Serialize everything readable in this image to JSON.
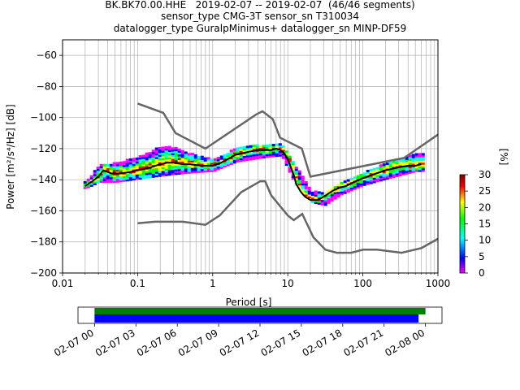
{
  "header": {
    "line1": "BK.BK70.00.HHE   2019-02-07 -- 2019-02-07  (46/46 segments)",
    "line2": "sensor_type CMG-3T sensor_sn T310034",
    "line3": "datalogger_type GuralpMinimus+ datalogger_sn MINP-DF59"
  },
  "chart_data": [
    {
      "type": "heatmap",
      "xlabel": "Period [s]",
      "ylabel": "Power [m²/s⁴/Hz] [dB]",
      "xscale": "log",
      "xlim": [
        0.01,
        1000
      ],
      "ylim": [
        -200,
        -50
      ],
      "x_ticks": [
        {
          "value": 0.01,
          "label": "0.01"
        },
        {
          "value": 0.1,
          "label": "0.1"
        },
        {
          "value": 1,
          "label": "1"
        },
        {
          "value": 10,
          "label": "10"
        },
        {
          "value": 100,
          "label": "100"
        },
        {
          "value": 1000,
          "label": "1000"
        }
      ],
      "y_ticks": [
        -60,
        -80,
        -100,
        -120,
        -140,
        -160,
        -180,
        -200
      ],
      "grid": true,
      "colorbar": {
        "label": "[%]",
        "ticks": [
          0,
          5,
          10,
          15,
          20,
          25,
          30
        ],
        "range": [
          0,
          30
        ]
      },
      "noise_model_high": {
        "x": [
          0.1,
          0.22,
          0.32,
          0.8,
          3.8,
          4.6,
          6.3,
          7.9,
          15.4,
          20,
          354,
          1000
        ],
        "y": [
          -91,
          -97,
          -110,
          -120,
          -98,
          -96,
          -101,
          -113,
          -120,
          -138,
          -126,
          -111
        ]
      },
      "noise_model_low": {
        "x": [
          0.1,
          0.17,
          0.4,
          0.8,
          1.24,
          2.4,
          4.3,
          5,
          6,
          10,
          12,
          15.6,
          21.9,
          31.6,
          45,
          70,
          101,
          154,
          328,
          600,
          1000
        ],
        "y": [
          -168,
          -167,
          -167,
          -169,
          -163,
          -148,
          -141,
          -141,
          -150,
          -163,
          -166,
          -162,
          -177,
          -185,
          -187,
          -187,
          -185,
          -185,
          -187,
          -184,
          -178
        ]
      },
      "mode_curve": {
        "x": [
          0.02,
          0.025,
          0.03,
          0.035,
          0.045,
          0.06,
          0.08,
          0.1,
          0.15,
          0.2,
          0.25,
          0.3,
          0.4,
          0.5,
          0.7,
          1,
          1.3,
          2,
          3,
          4,
          5,
          6,
          7,
          8,
          9,
          10,
          11,
          12,
          13,
          15,
          17,
          20,
          25,
          30,
          40,
          50,
          60,
          80,
          100,
          150,
          200,
          300,
          400,
          500,
          600
        ],
        "y": [
          -144,
          -141,
          -138,
          -134,
          -136,
          -136,
          -135,
          -134,
          -132,
          -130,
          -129,
          -129,
          -130,
          -130,
          -131,
          -131,
          -129,
          -124,
          -122,
          -121,
          -121,
          -121,
          -120,
          -121,
          -123,
          -127,
          -132,
          -137,
          -143,
          -148,
          -151,
          -153,
          -153,
          -151,
          -147,
          -145,
          -144,
          -141,
          -139,
          -136,
          -134,
          -132,
          -131,
          -131,
          -130
        ]
      },
      "distribution_spread_db": [
        {
          "x": 0.02,
          "lo": -146,
          "hi": -142
        },
        {
          "x": 0.03,
          "lo": -142,
          "hi": -131
        },
        {
          "x": 0.05,
          "lo": -142,
          "hi": -130
        },
        {
          "x": 0.1,
          "lo": -140,
          "hi": -126
        },
        {
          "x": 0.2,
          "lo": -138,
          "hi": -119
        },
        {
          "x": 0.3,
          "lo": -137,
          "hi": -120
        },
        {
          "x": 0.5,
          "lo": -136,
          "hi": -124
        },
        {
          "x": 1,
          "lo": -135,
          "hi": -128
        },
        {
          "x": 2,
          "lo": -129,
          "hi": -120
        },
        {
          "x": 5,
          "lo": -126,
          "hi": -118
        },
        {
          "x": 8,
          "lo": -125,
          "hi": -118
        },
        {
          "x": 12,
          "lo": -143,
          "hi": -131
        },
        {
          "x": 20,
          "lo": -155,
          "hi": -148
        },
        {
          "x": 30,
          "lo": -157,
          "hi": -149
        },
        {
          "x": 50,
          "lo": -150,
          "hi": -142
        },
        {
          "x": 100,
          "lo": -144,
          "hi": -136
        },
        {
          "x": 200,
          "lo": -140,
          "hi": -130
        },
        {
          "x": 500,
          "lo": -135,
          "hi": -124
        }
      ]
    },
    {
      "type": "timeline",
      "x_ticks": [
        "02-07 00",
        "02-07 03",
        "02-07 06",
        "02-07 09",
        "02-07 12",
        "02-07 15",
        "02-07 18",
        "02-07 21",
        "02-08 00"
      ],
      "range_hours": [
        -1.2,
        25.2
      ],
      "bars": [
        {
          "color": "#008000",
          "start_hours": 0,
          "end_hours": 24.0
        },
        {
          "color": "#0000ff",
          "start_hours": 0,
          "end_hours": 23.5
        }
      ]
    }
  ],
  "colors": {
    "grid": "#b0b0b0",
    "noise_model": "#666666",
    "mode_curve": "#000000",
    "colormap": [
      "#ff00ff",
      "#0000ff",
      "#00ffff",
      "#00ff00",
      "#ffff00",
      "#ff0000",
      "#800000"
    ]
  }
}
